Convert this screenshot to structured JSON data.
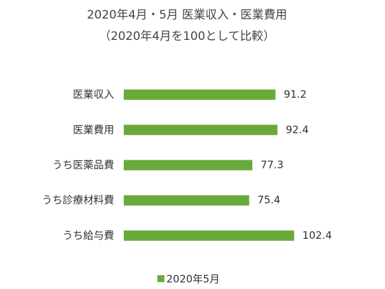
{
  "chart_data": {
    "type": "bar",
    "orientation": "horizontal",
    "title": "2020年4月・5月 医業収入・医業費用",
    "subtitle": "（2020年4月を100として比較）",
    "categories": [
      "医業収入",
      "医業費用",
      "うち医薬品費",
      "うち診療材料費",
      "うち給与費"
    ],
    "series": [
      {
        "name": "2020年5月",
        "color": "#6aaa3a",
        "values": [
          91.2,
          92.4,
          77.3,
          75.4,
          102.4
        ]
      }
    ],
    "legend": "bottom"
  }
}
